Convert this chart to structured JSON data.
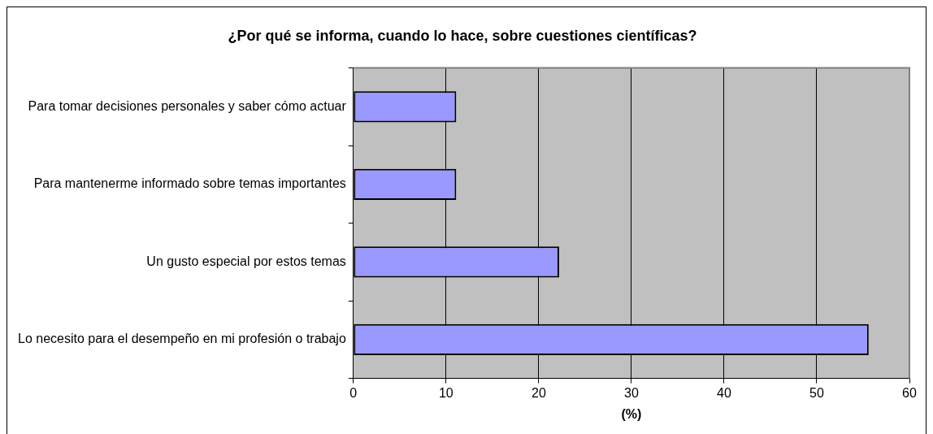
{
  "chart_data": {
    "type": "bar",
    "orientation": "horizontal",
    "title": "¿Por qué se informa, cuando lo hace, sobre cuestiones científicas?",
    "xlabel": "(%)",
    "categories": [
      "Para tomar decisiones personales y saber cómo actuar",
      "Para mantenerme informado sobre temas importantes",
      "Un gusto especial por estos temas",
      "Lo necesito para el desempeño en mi profesión o trabajo"
    ],
    "values": [
      11.1,
      11.1,
      22.2,
      55.6
    ],
    "color": "#9999ff",
    "xlim": [
      0,
      60
    ],
    "xticks": [
      0,
      10,
      20,
      30,
      40,
      50,
      60
    ],
    "grid": "x",
    "legend": false
  }
}
